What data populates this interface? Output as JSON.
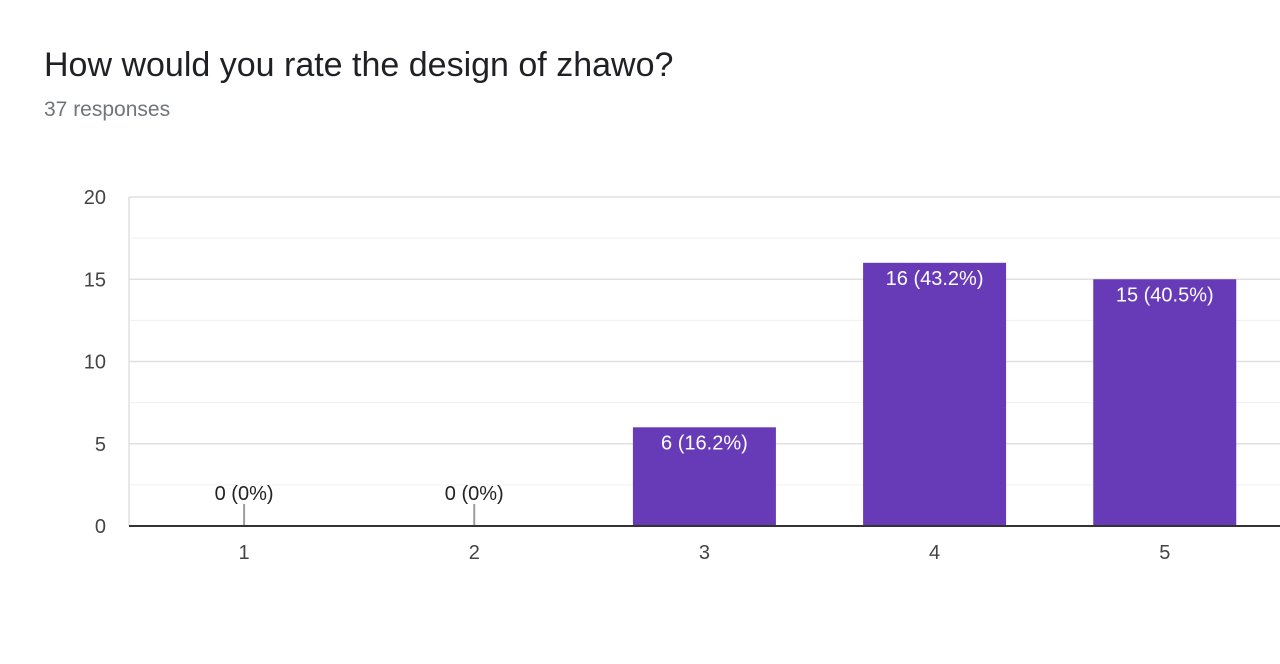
{
  "header": {
    "title": "How would you rate the design of zhawo?",
    "subtitle": "37 responses"
  },
  "colors": {
    "bar": "#673ab7",
    "grid": "#e0e0e0",
    "minor_grid": "#f0f0f0",
    "axis": "#333333",
    "zero_stub": "#9e9e9e"
  },
  "chart_data": {
    "type": "bar",
    "categories": [
      "1",
      "2",
      "3",
      "4",
      "5"
    ],
    "values": [
      0,
      0,
      6,
      16,
      15
    ],
    "data_labels": [
      "0 (0%)",
      "0 (0%)",
      "6 (16.2%)",
      "16 (43.2%)",
      "15 (40.5%)"
    ],
    "ylim": [
      0,
      20
    ],
    "yticks": [
      "0",
      "5",
      "10",
      "15",
      "20"
    ],
    "ytick_values": [
      0,
      5,
      10,
      15,
      20
    ],
    "grid": true,
    "legend": "none"
  }
}
